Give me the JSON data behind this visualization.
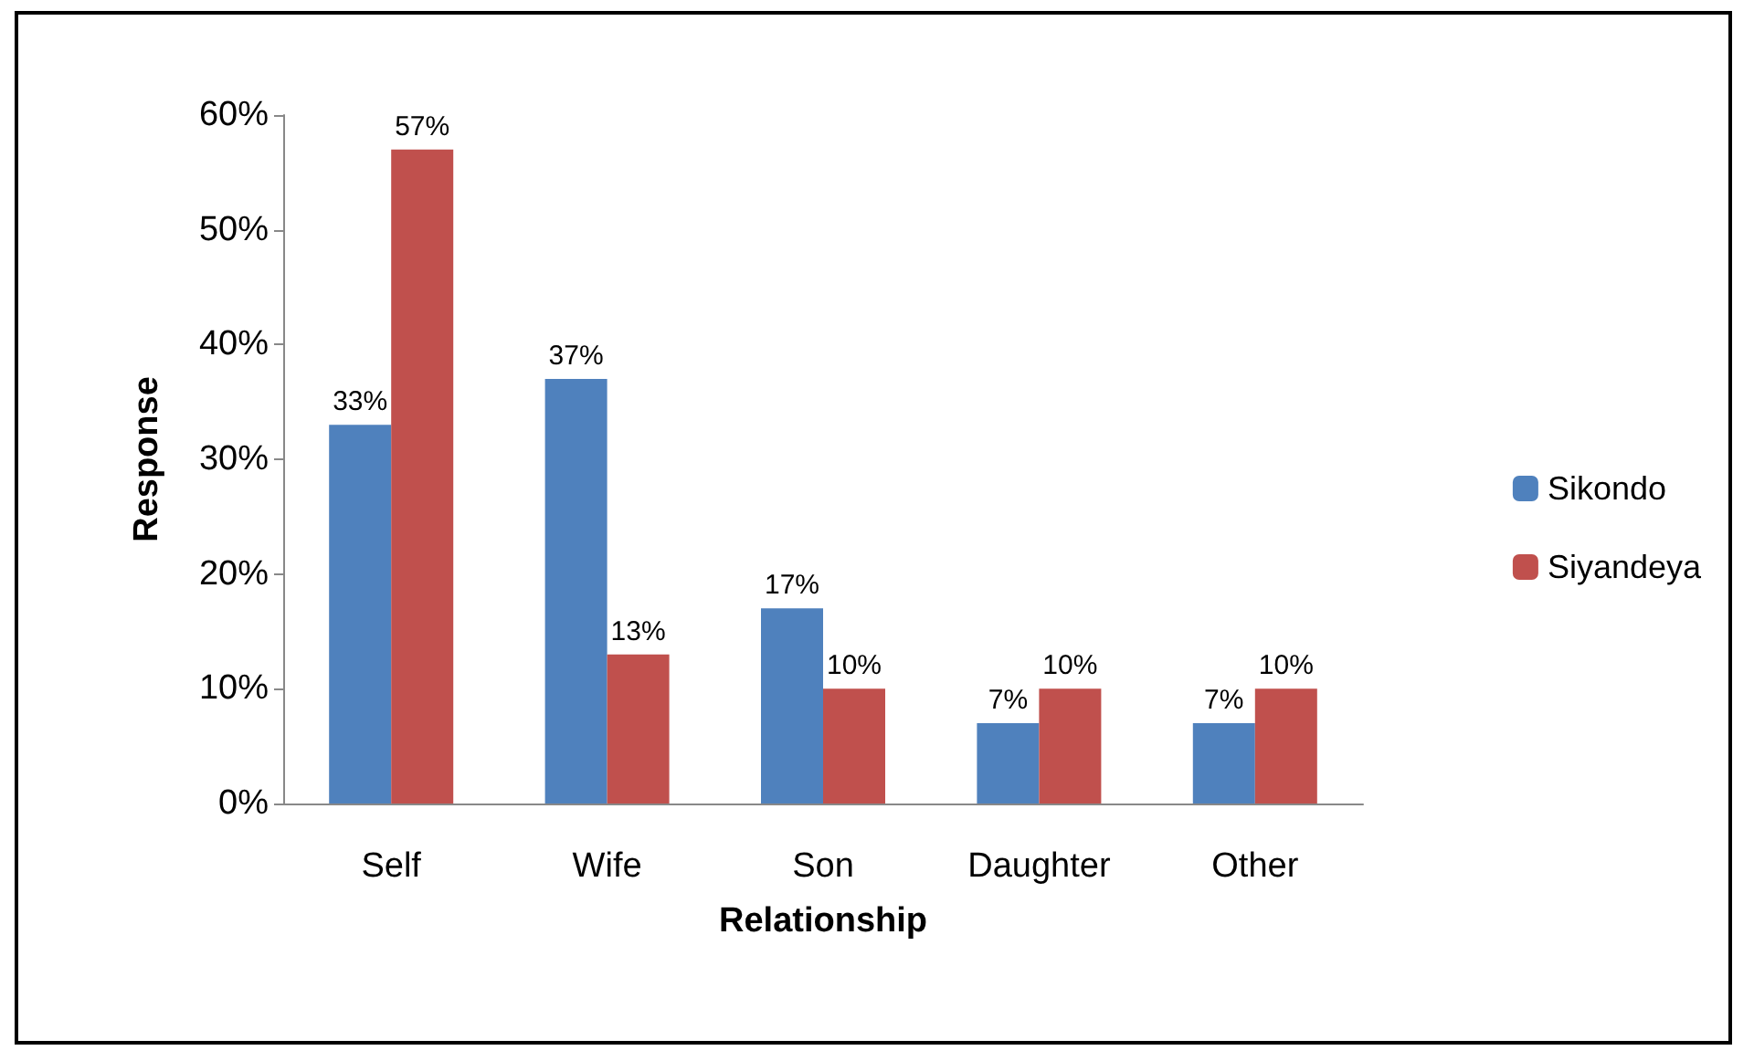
{
  "chart_data": {
    "type": "bar",
    "xlabel": "Relationship",
    "ylabel": "Response",
    "categories": [
      "Self",
      "Wife",
      "Son",
      "Daughter",
      "Other"
    ],
    "series": [
      {
        "name": "Sikondo",
        "color": "#4f81bd",
        "values": [
          33,
          37,
          17,
          7,
          7
        ],
        "value_labels": [
          "33%",
          "37%",
          "17%",
          "7%",
          "7%"
        ]
      },
      {
        "name": "Siyandeya",
        "color": "#c0504d",
        "values": [
          57,
          13,
          10,
          10,
          10
        ],
        "value_labels": [
          "57%",
          "13%",
          "10%",
          "10%",
          "10%"
        ]
      }
    ],
    "ylim": [
      0,
      60
    ],
    "yticks": [
      {
        "value": 0,
        "label": "0%"
      },
      {
        "value": 10,
        "label": "10%"
      },
      {
        "value": 20,
        "label": "20%"
      },
      {
        "value": 30,
        "label": "30%"
      },
      {
        "value": 40,
        "label": "40%"
      },
      {
        "value": 50,
        "label": "50%"
      },
      {
        "value": 60,
        "label": "60%"
      }
    ],
    "grid": false,
    "legend": "right"
  }
}
